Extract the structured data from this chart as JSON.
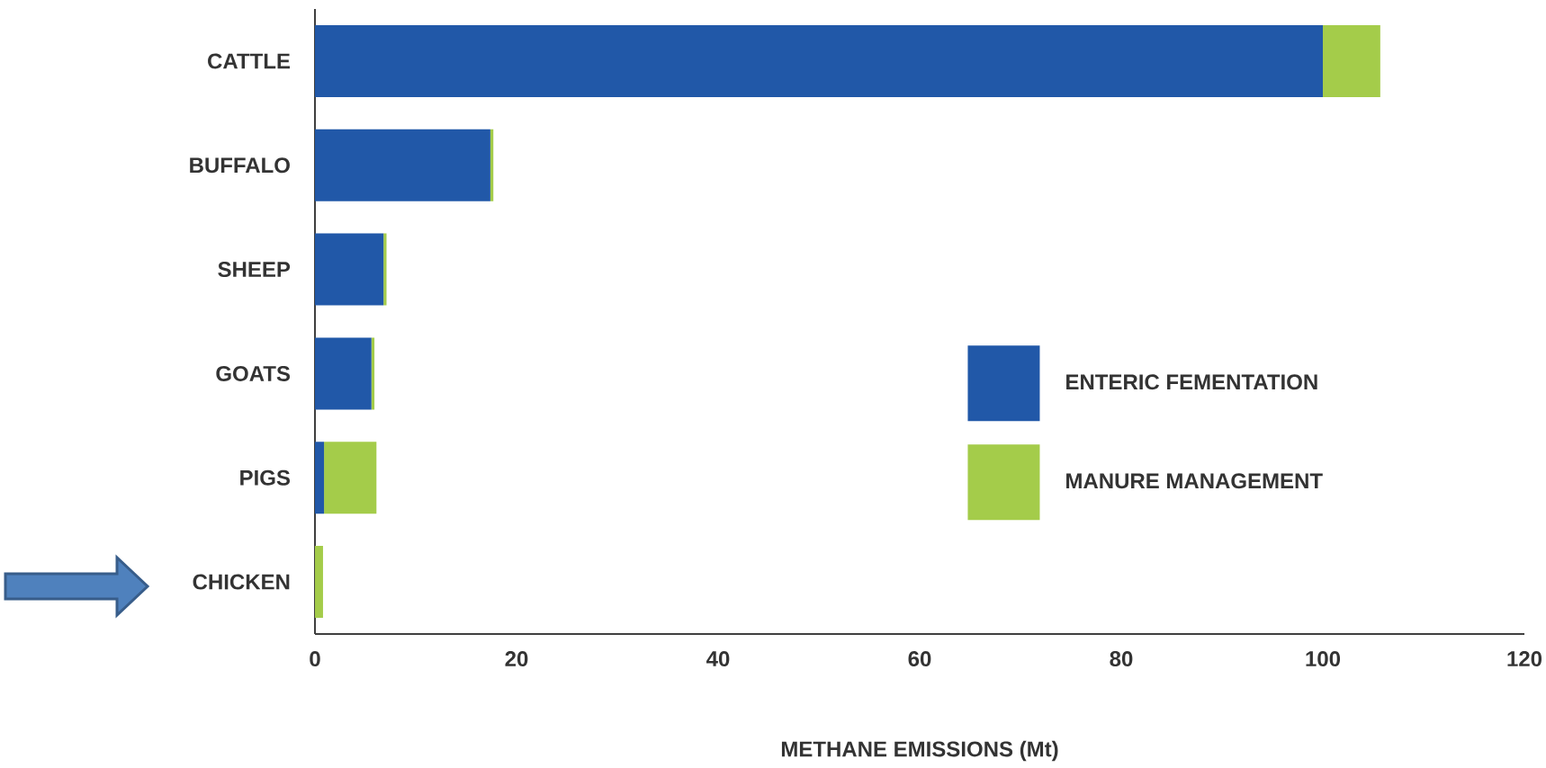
{
  "chart_data": {
    "type": "bar",
    "orientation": "horizontal",
    "stacked": true,
    "xlabel": "METHANE EMISSIONS (Mt)",
    "categories": [
      "CATTLE",
      "BUFFALO",
      "SHEEP",
      "GOATS",
      "PIGS",
      "CHICKEN"
    ],
    "series": [
      {
        "name": "ENTERIC FEMENTATION",
        "color": "#2158a8",
        "values": [
          100.0,
          17.4,
          6.8,
          5.6,
          0.9,
          0
        ]
      },
      {
        "name": "MANURE MANAGEMENT",
        "color": "#a4cc4a",
        "values": [
          5.7,
          0.3,
          0.3,
          0.3,
          5.2,
          0.8
        ]
      }
    ],
    "xlim": [
      0,
      120
    ],
    "xticks": [
      0,
      20,
      40,
      60,
      80,
      100,
      120
    ],
    "legend": "right",
    "grid": false
  }
}
